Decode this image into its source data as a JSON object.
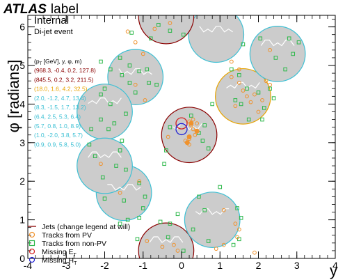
{
  "chart_data": {
    "type": "scatter",
    "title": "ATLAS label",
    "atlas_word": "ATLAS",
    "atlas_suffix": "label",
    "status": "Internal",
    "subtitle": "Di-jet event",
    "xlabel": "y",
    "ylabel": "φ [radians]",
    "xlim": [
      -4,
      4
    ],
    "ylim": [
      0,
      6.3
    ],
    "xticks": [
      "-4",
      "-3",
      "-2",
      "-1",
      "0",
      "1",
      "2",
      "3",
      "4"
    ],
    "yticks": [
      "0",
      "1",
      "2",
      "3",
      "4",
      "5",
      "6"
    ],
    "jet_header": "(p_T [GeV], y, φ, m)",
    "jet_header_main": "(p",
    "jet_header_sub": "T",
    "jet_header_rest": " [GeV], y, φ, m)",
    "jets": [
      {
        "label": "(968.3, -0.4, 0.2, 127.8)",
        "pt": 968.3,
        "y": -0.4,
        "phi": 0.2,
        "m": 127.8,
        "color": "#8b0000"
      },
      {
        "label": "(845.5, 0.2, 3.2, 211.5)",
        "pt": 845.5,
        "y": 0.2,
        "phi": 3.2,
        "m": 211.5,
        "color": "#8b0000"
      },
      {
        "label": "(18.0, 1.6, 4.2, 32.5)",
        "pt": 18.0,
        "y": 1.6,
        "phi": 4.2,
        "m": 32.5,
        "color": "#e8a400"
      },
      {
        "label": "(2.0, -1.2, 4.7, 13.4)",
        "pt": 2.0,
        "y": -1.2,
        "phi": 4.7,
        "m": 13.4,
        "color": "#3cc0d4"
      },
      {
        "label": "(8.3, -1.5, 1.7, 13.2)",
        "pt": 8.3,
        "y": -1.5,
        "phi": 1.7,
        "m": 13.2,
        "color": "#3cc0d4"
      },
      {
        "label": "(6.4, 2.5, 5.3, 6.4)",
        "pt": 6.4,
        "y": 2.5,
        "phi": 5.3,
        "m": 6.4,
        "color": "#3cc0d4"
      },
      {
        "label": "(5.7, 0.8, 1.0, 8.9)",
        "pt": 5.7,
        "y": 0.8,
        "phi": 1.0,
        "m": 8.9,
        "color": "#3cc0d4"
      },
      {
        "label": "(1.0, -2.0, 3.8, 5.7)",
        "pt": 1.0,
        "y": -2.0,
        "phi": 3.8,
        "m": 5.7,
        "color": "#3cc0d4"
      },
      {
        "label": "(0.9, 0.9, 5.8, 5.0)",
        "pt": 0.9,
        "y": 0.9,
        "phi": 5.8,
        "m": 5.0,
        "color": "#3cc0d4"
      }
    ],
    "extra_jets": [
      {
        "y": -0.4,
        "phi": 6.28,
        "color": "#8b0000"
      },
      {
        "y": -2.0,
        "phi": 2.4,
        "color": "#3cc0d4"
      }
    ],
    "legend": [
      {
        "label": "Jets (change legend at will)",
        "marker": "line",
        "color": "#8b0000"
      },
      {
        "label": "Tracks from PV",
        "marker": "circle",
        "color": "#f0922c"
      },
      {
        "label": "Tracks from non-PV",
        "marker": "square",
        "color": "#2db84a"
      },
      {
        "label": "Missing E",
        "sub": "T",
        "marker": "circle",
        "color": "#d42020"
      },
      {
        "label": "Missing H",
        "sub": "T",
        "marker": "circle",
        "color": "#2020d4"
      }
    ],
    "tracks_pv": [
      [
        -1.4,
        5.88
      ],
      [
        -1.2,
        5.6
      ],
      [
        -1.0,
        5.3
      ],
      [
        -0.7,
        5.95
      ],
      [
        -0.3,
        6.1
      ],
      [
        1.3,
        5.1
      ],
      [
        1.5,
        4.9
      ],
      [
        1.3,
        4.7
      ],
      [
        1.5,
        4.55
      ],
      [
        1.6,
        4.35
      ],
      [
        1.7,
        4.2
      ],
      [
        1.8,
        4.05
      ],
      [
        1.9,
        4.25
      ],
      [
        2.1,
        4.1
      ],
      [
        2.3,
        4.5
      ],
      [
        2.2,
        4.6
      ],
      [
        1.4,
        3.95
      ],
      [
        2.0,
        3.8
      ],
      [
        0.2,
        3.55
      ],
      [
        0.25,
        3.45
      ],
      [
        0.3,
        3.35
      ],
      [
        0.35,
        3.2
      ],
      [
        0.4,
        3.5
      ],
      [
        0.3,
        3.6
      ],
      [
        0.2,
        3.1
      ],
      [
        0.15,
        3.0
      ],
      [
        0.1,
        3.05
      ],
      [
        0.2,
        2.95
      ],
      [
        -0.35,
        3.15
      ],
      [
        -2.1,
        2.45
      ],
      [
        -1.1,
        2.0
      ],
      [
        -1.6,
        1.7
      ],
      [
        1.1,
        1.25
      ],
      [
        1.4,
        0.9
      ],
      [
        1.5,
        0.75
      ],
      [
        1.45,
        0.55
      ],
      [
        0.9,
        0.25
      ],
      [
        1.1,
        0.35
      ],
      [
        -0.9,
        0.45
      ],
      [
        -0.5,
        0.3
      ],
      [
        -0.2,
        0.35
      ],
      [
        -0.1,
        0.2
      ],
      [
        1.9,
        0.15
      ],
      [
        -1.2,
        4.5
      ],
      [
        -0.95,
        4.1
      ],
      [
        2.3,
        5.4
      ]
    ],
    "tracks_nonpv": [
      [
        -1.3,
        5.85
      ],
      [
        -0.8,
        5.7
      ],
      [
        -0.3,
        5.9
      ],
      [
        0.05,
        5.8
      ],
      [
        -0.6,
        6.05
      ],
      [
        1.6,
        5.55
      ],
      [
        2.05,
        5.7
      ],
      [
        2.45,
        5.2
      ],
      [
        2.9,
        5.3
      ],
      [
        3.05,
        5.6
      ],
      [
        2.8,
        5.7
      ],
      [
        2.7,
        4.9
      ],
      [
        1.3,
        4.9
      ],
      [
        1.5,
        4.75
      ],
      [
        1.4,
        4.1
      ],
      [
        1.55,
        4.0
      ],
      [
        1.7,
        4.4
      ],
      [
        2.0,
        4.3
      ],
      [
        2.3,
        4.4
      ],
      [
        2.4,
        4.15
      ],
      [
        1.75,
        3.6
      ],
      [
        2.1,
        3.6
      ],
      [
        2.15,
        3.9
      ],
      [
        0.8,
        4.0
      ],
      [
        -2.1,
        5.1
      ],
      [
        -1.6,
        5.2
      ],
      [
        -1.35,
        5.0
      ],
      [
        -1.85,
        4.9
      ],
      [
        -1.1,
        4.85
      ],
      [
        -1.35,
        4.55
      ],
      [
        -1.55,
        4.75
      ],
      [
        -2.0,
        4.4
      ],
      [
        -2.1,
        4.25
      ],
      [
        -1.85,
        4.0
      ],
      [
        -1.75,
        3.5
      ],
      [
        -1.45,
        3.75
      ],
      [
        -1.2,
        4.3
      ],
      [
        -0.85,
        4.55
      ],
      [
        -0.9,
        4.9
      ],
      [
        -0.65,
        4.5
      ],
      [
        0.25,
        3.7
      ],
      [
        0.45,
        3.25
      ],
      [
        0.6,
        3.45
      ],
      [
        0.55,
        3.05
      ],
      [
        -0.3,
        3.4
      ],
      [
        -0.4,
        2.8
      ],
      [
        0.7,
        2.85
      ],
      [
        -0.45,
        2.45
      ],
      [
        -2.35,
        3.35
      ],
      [
        -2.1,
        3.6
      ],
      [
        -2.4,
        2.95
      ],
      [
        -1.9,
        3.35
      ],
      [
        -1.55,
        3.05
      ],
      [
        -1.6,
        2.8
      ],
      [
        -2.25,
        2.65
      ],
      [
        -2.05,
        2.1
      ],
      [
        -1.7,
        2.4
      ],
      [
        -1.45,
        2.3
      ],
      [
        -1.5,
        1.5
      ],
      [
        -1.1,
        1.95
      ],
      [
        -0.95,
        1.6
      ],
      [
        -1.0,
        1.3
      ],
      [
        -2.0,
        1.55
      ],
      [
        -1.4,
        1.0
      ],
      [
        -1.1,
        1.05
      ],
      [
        -1.6,
        0.9
      ],
      [
        1.0,
        1.85
      ],
      [
        0.45,
        1.6
      ],
      [
        0.6,
        1.25
      ],
      [
        1.45,
        1.3
      ],
      [
        1.5,
        0.5
      ],
      [
        1.35,
        0.35
      ],
      [
        0.3,
        0.75
      ],
      [
        0.05,
        0.2
      ],
      [
        0.7,
        0.45
      ],
      [
        -0.35,
        0.55
      ],
      [
        -0.55,
        0.95
      ],
      [
        -1.15,
        0.5
      ],
      [
        -0.1,
        1.15
      ],
      [
        -0.3,
        0.9
      ],
      [
        1.55,
        1.05
      ]
    ],
    "missing_et": {
      "y": 0.0,
      "phi": 3.5
    },
    "missing_ht": {
      "y": 0.0,
      "phi": 3.35
    }
  }
}
